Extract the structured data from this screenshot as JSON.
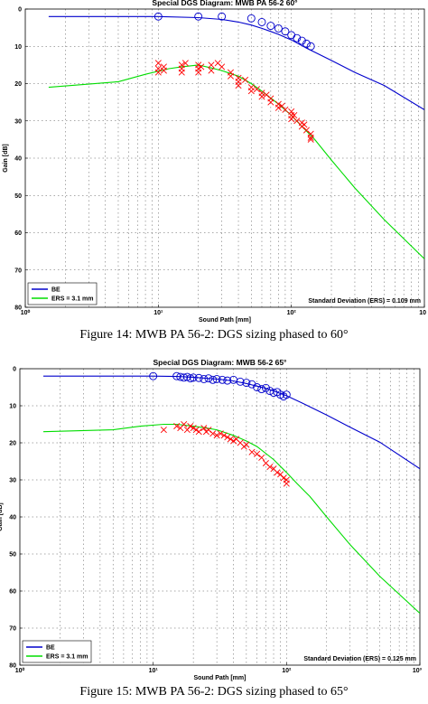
{
  "figures": [
    {
      "caption": "Figure 14: MWB PA 56-2: DGS sizing phased to 60°"
    },
    {
      "caption": "Figure 15: MWB PA 56-2: DGS sizing phased to 65°"
    }
  ],
  "chart_data": [
    {
      "type": "line",
      "title": "Special DGS Diagram: MWB PA 56-2 60°",
      "xlabel": "Sound Path [mm]",
      "ylabel": "Gain [dB]",
      "x_scale": "log",
      "xlim": [
        1,
        1000
      ],
      "ylim": [
        0,
        80
      ],
      "y_inverted": true,
      "x_ticks": [
        "10⁰",
        "10¹",
        "10²",
        "10"
      ],
      "y_ticks": [
        "0",
        "10",
        "20",
        "30",
        "40",
        "50",
        "60",
        "70",
        "80"
      ],
      "grid": true,
      "legend_position": "bottom-left",
      "annotation": "Standard Deviation (ERS) = 0.109 mm",
      "colors": {
        "BE": "#0000cc",
        "ERS": "#00dd00",
        "markers": "#ff0000"
      },
      "series": [
        {
          "name": "BE",
          "x": [
            1.5,
            10,
            20,
            30,
            40,
            50,
            60,
            70,
            80,
            100,
            130,
            200,
            300,
            500,
            1000
          ],
          "y": [
            2,
            2,
            2.3,
            2.8,
            3.5,
            4.3,
            5.2,
            6,
            6.8,
            8.3,
            10.5,
            13.8,
            17,
            20.5,
            27
          ]
        },
        {
          "name": "ERS = 3.1 mm",
          "x": [
            1.5,
            5,
            8,
            12,
            15,
            20,
            25,
            30,
            40,
            50,
            60,
            80,
            100,
            120,
            150,
            200,
            300,
            500,
            1000
          ],
          "y": [
            21,
            19.5,
            17.5,
            16,
            15.5,
            15,
            15.8,
            16.5,
            18,
            20,
            22,
            25.5,
            28.5,
            31.5,
            35,
            40.5,
            48,
            56.5,
            67
          ]
        },
        {
          "name": "BE measured",
          "marker": "o",
          "x": [
            10,
            20,
            30,
            50,
            60,
            70,
            80,
            90,
            100,
            110,
            120,
            130,
            140
          ],
          "y": [
            2,
            2,
            2,
            2.5,
            3.5,
            4.5,
            5.2,
            6,
            7,
            7.8,
            8.5,
            9.3,
            10
          ]
        },
        {
          "name": "ERS measured",
          "marker": "x",
          "x": [
            10,
            10,
            10,
            11,
            11,
            15,
            15,
            15,
            16,
            20,
            20,
            20,
            21,
            25,
            25,
            28,
            30,
            35,
            35,
            40,
            40,
            40,
            45,
            50,
            50,
            55,
            60,
            60,
            65,
            70,
            70,
            80,
            80,
            85,
            90,
            100,
            100,
            100,
            105,
            110,
            120,
            120,
            125,
            130,
            140,
            140,
            140
          ],
          "y": [
            14.5,
            16,
            17,
            15.5,
            16.5,
            15,
            16,
            17,
            14.5,
            15,
            16,
            17,
            15.5,
            15,
            16.5,
            14.5,
            15.5,
            17,
            18,
            18.5,
            19.5,
            20.5,
            19,
            21,
            22,
            21.5,
            22.5,
            23.5,
            23,
            24,
            25,
            25.5,
            26.5,
            26,
            27,
            27.5,
            28.5,
            29.5,
            28.5,
            30,
            30.5,
            31.5,
            31,
            32.5,
            33.5,
            34.5,
            35
          ]
        }
      ]
    },
    {
      "type": "line",
      "title": "Special DGS Diagram: MWB 56-2 65°",
      "xlabel": "Sound Path [mm]",
      "ylabel": "Gain [dB]",
      "x_scale": "log",
      "xlim": [
        1,
        1000
      ],
      "ylim": [
        0,
        80
      ],
      "y_inverted": true,
      "x_ticks": [
        "10⁰",
        "10¹",
        "10²",
        "10³"
      ],
      "y_ticks": [
        "0",
        "10",
        "20",
        "30",
        "40",
        "50",
        "60",
        "70",
        "80"
      ],
      "grid": true,
      "legend_position": "bottom-left",
      "annotation": "Standard Deviation (ERS) = 0.125 mm",
      "colors": {
        "BE": "#0000cc",
        "ERS": "#00dd00",
        "markers": "#ff0000"
      },
      "series": [
        {
          "name": "BE",
          "x": [
            1.5,
            10,
            15,
            20,
            30,
            40,
            50,
            60,
            70,
            80,
            100,
            130,
            200,
            300,
            500,
            1000
          ],
          "y": [
            2,
            2,
            2.1,
            2.3,
            2.8,
            3.3,
            4,
            4.7,
            5.3,
            6,
            7.3,
            9.2,
            12.5,
            15.8,
            19.8,
            27
          ]
        },
        {
          "name": "ERS = 3.1 mm",
          "x": [
            1.5,
            5,
            8,
            12,
            15,
            20,
            25,
            30,
            40,
            50,
            60,
            80,
            100,
            120,
            150,
            200,
            300,
            500,
            1000
          ],
          "y": [
            17,
            16.5,
            15.5,
            15,
            15,
            15.5,
            16,
            16.5,
            18,
            19.5,
            21,
            24.5,
            28,
            31,
            34.5,
            40,
            47.5,
            56,
            66
          ]
        },
        {
          "name": "BE measured",
          "marker": "o",
          "x": [
            10,
            15,
            16,
            17,
            18,
            19,
            20,
            22,
            24,
            26,
            28,
            30,
            33,
            36,
            40,
            45,
            50,
            55,
            60,
            65,
            70,
            75,
            80,
            85,
            90,
            95,
            100
          ],
          "y": [
            2,
            2,
            2.2,
            2.4,
            2.2,
            2.6,
            2.4,
            2.5,
            2.8,
            2.6,
            3,
            2.8,
            3,
            3.2,
            3,
            3.5,
            3.8,
            4.2,
            5,
            5.5,
            5.2,
            6,
            6.5,
            6.3,
            7,
            7.5,
            7
          ]
        },
        {
          "name": "ERS measured",
          "marker": "x",
          "x": [
            12,
            15,
            16,
            17,
            18,
            19,
            20,
            21,
            22,
            24,
            25,
            26,
            28,
            30,
            32,
            34,
            36,
            38,
            40,
            42,
            45,
            48,
            50,
            55,
            60,
            65,
            70,
            75,
            80,
            85,
            90,
            95,
            100,
            100
          ],
          "y": [
            16.5,
            15.5,
            16,
            15,
            16.5,
            15.5,
            16,
            16.5,
            17,
            16,
            17,
            16.5,
            17.5,
            18,
            17.5,
            18,
            18.5,
            19,
            19.5,
            19,
            20,
            21,
            20.5,
            22.5,
            23,
            24,
            25.5,
            26.5,
            27,
            28,
            28.5,
            29.5,
            30,
            31
          ]
        }
      ]
    }
  ]
}
